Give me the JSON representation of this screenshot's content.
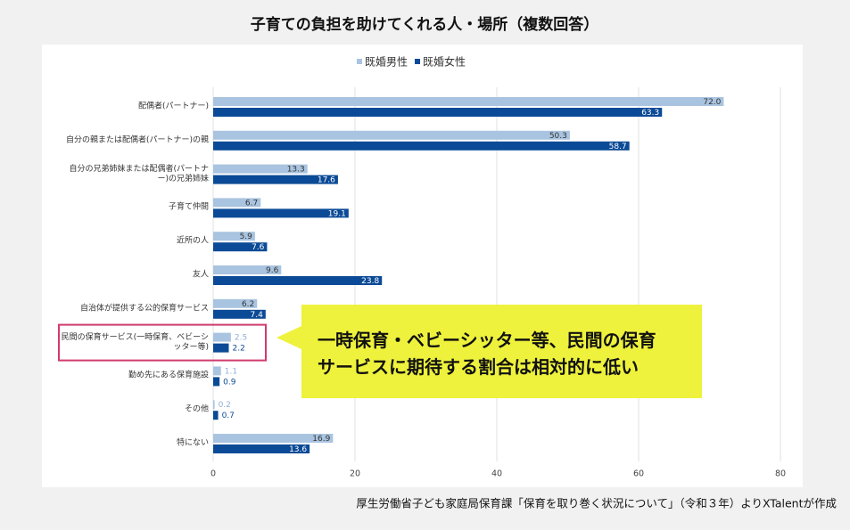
{
  "chart_data": {
    "type": "hbar",
    "title": "子育ての負担を助けてくれる人・場所（複数回答）",
    "source": "厚生労働省子ども家庭局保育課「保育を取り巻く状況について」（令和３年）よりXTalentが作成",
    "categories": [
      "配偶者(パートナー)",
      "自分の親または配偶者(パートナー)の親",
      "自分の兄弟姉妹または配偶者(パートナー)の兄弟姉妹",
      "子育て仲間",
      "近所の人",
      "友人",
      "自治体が提供する公的保育サービス",
      "民間の保育サービス(一時保育、ベビーシッター等)",
      "勤め先にある保育施設",
      "その他",
      "特にない"
    ],
    "series": [
      {
        "name": "既婚男性",
        "color": "#a9c4e0",
        "values": [
          72.0,
          50.3,
          13.3,
          6.7,
          5.9,
          9.6,
          6.2,
          2.5,
          1.1,
          0.2,
          16.9
        ],
        "value_labels": [
          "72.0",
          "50.3",
          "13.3",
          "6.7",
          "5.9",
          "9.6",
          "6.2",
          "2.5",
          "1.1",
          "0.2",
          "16.9"
        ]
      },
      {
        "name": "既婚女性",
        "color": "#0b4a96",
        "values": [
          63.3,
          58.7,
          17.6,
          19.1,
          7.6,
          23.8,
          7.4,
          2.2,
          0.9,
          0.7,
          13.6
        ],
        "value_labels": [
          "63.3",
          "58.7",
          "17.6",
          "19.1",
          "7.6",
          "23.8",
          "7.4",
          "2.2",
          "0.9",
          "0.7",
          "13.6"
        ]
      }
    ],
    "xlim": [
      0,
      80
    ],
    "xticks": [
      0,
      20,
      40,
      60,
      80
    ],
    "grid": true,
    "legend": "top",
    "annotation": {
      "lines": [
        "一時保育・ベビーシッター等、民間の保育",
        "サービスに期待する割合は相対的に低い"
      ],
      "color": "#eef23c",
      "highlight_index": 7,
      "highlight_color": "#d23a6e"
    }
  }
}
